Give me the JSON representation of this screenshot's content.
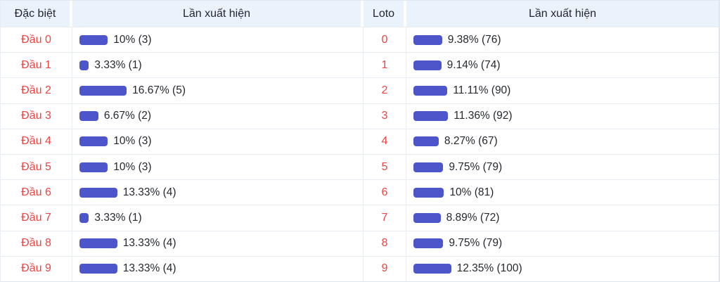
{
  "colors": {
    "bar": "#4c55c9",
    "red_label": "#ef4444",
    "header_bg": "#eaf2fb",
    "border": "#e8edf4"
  },
  "table": {
    "headers": {
      "special": "Đặc biệt",
      "occurrences_left": "Lần xuất hiện",
      "loto": "Loto",
      "occurrences_right": "Lần xuất hiện"
    },
    "left_rows": [
      {
        "label": "Đầu 0",
        "pct": 10,
        "text": "10% (3)"
      },
      {
        "label": "Đầu 1",
        "pct": 3.33,
        "text": "3.33% (1)"
      },
      {
        "label": "Đầu 2",
        "pct": 16.67,
        "text": "16.67% (5)"
      },
      {
        "label": "Đầu 3",
        "pct": 6.67,
        "text": "6.67% (2)"
      },
      {
        "label": "Đầu 4",
        "pct": 10,
        "text": "10% (3)"
      },
      {
        "label": "Đầu 5",
        "pct": 10,
        "text": "10% (3)"
      },
      {
        "label": "Đầu 6",
        "pct": 13.33,
        "text": "13.33% (4)"
      },
      {
        "label": "Đầu 7",
        "pct": 3.33,
        "text": "3.33% (1)"
      },
      {
        "label": "Đầu 8",
        "pct": 13.33,
        "text": "13.33% (4)"
      },
      {
        "label": "Đầu 9",
        "pct": 13.33,
        "text": "13.33% (4)"
      }
    ],
    "right_rows": [
      {
        "label": "0",
        "pct": 9.38,
        "text": "9.38% (76)"
      },
      {
        "label": "1",
        "pct": 9.14,
        "text": "9.14% (74)"
      },
      {
        "label": "2",
        "pct": 11.11,
        "text": "11.11% (90)"
      },
      {
        "label": "3",
        "pct": 11.36,
        "text": "11.36% (92)"
      },
      {
        "label": "4",
        "pct": 8.27,
        "text": "8.27% (67)"
      },
      {
        "label": "5",
        "pct": 9.75,
        "text": "9.75% (79)"
      },
      {
        "label": "6",
        "pct": 10,
        "text": "10% (81)"
      },
      {
        "label": "7",
        "pct": 8.89,
        "text": "8.89% (72)"
      },
      {
        "label": "8",
        "pct": 9.75,
        "text": "9.75% (79)"
      },
      {
        "label": "9",
        "pct": 12.35,
        "text": "12.35% (100)"
      }
    ]
  },
  "chart_data": [
    {
      "type": "bar",
      "title": "Đặc biệt - Lần xuất hiện",
      "orientation": "horizontal",
      "categories": [
        "Đầu 0",
        "Đầu 1",
        "Đầu 2",
        "Đầu 3",
        "Đầu 4",
        "Đầu 5",
        "Đầu 6",
        "Đầu 7",
        "Đầu 8",
        "Đầu 9"
      ],
      "values_pct": [
        10,
        3.33,
        16.67,
        6.67,
        10,
        10,
        13.33,
        3.33,
        13.33,
        13.33
      ],
      "counts": [
        3,
        1,
        5,
        2,
        3,
        3,
        4,
        1,
        4,
        4
      ],
      "xlabel": "Lần xuất hiện",
      "ylabel": "Đặc biệt",
      "xlim_pct": [
        0,
        100
      ],
      "grid": false,
      "legend": false
    },
    {
      "type": "bar",
      "title": "Loto - Lần xuất hiện",
      "orientation": "horizontal",
      "categories": [
        "0",
        "1",
        "2",
        "3",
        "4",
        "5",
        "6",
        "7",
        "8",
        "9"
      ],
      "values_pct": [
        9.38,
        9.14,
        11.11,
        11.36,
        8.27,
        9.75,
        10,
        8.89,
        9.75,
        12.35
      ],
      "counts": [
        76,
        74,
        90,
        92,
        67,
        79,
        81,
        72,
        79,
        100
      ],
      "xlabel": "Lần xuất hiện",
      "ylabel": "Loto",
      "xlim_pct": [
        0,
        100
      ],
      "grid": false,
      "legend": false
    }
  ]
}
